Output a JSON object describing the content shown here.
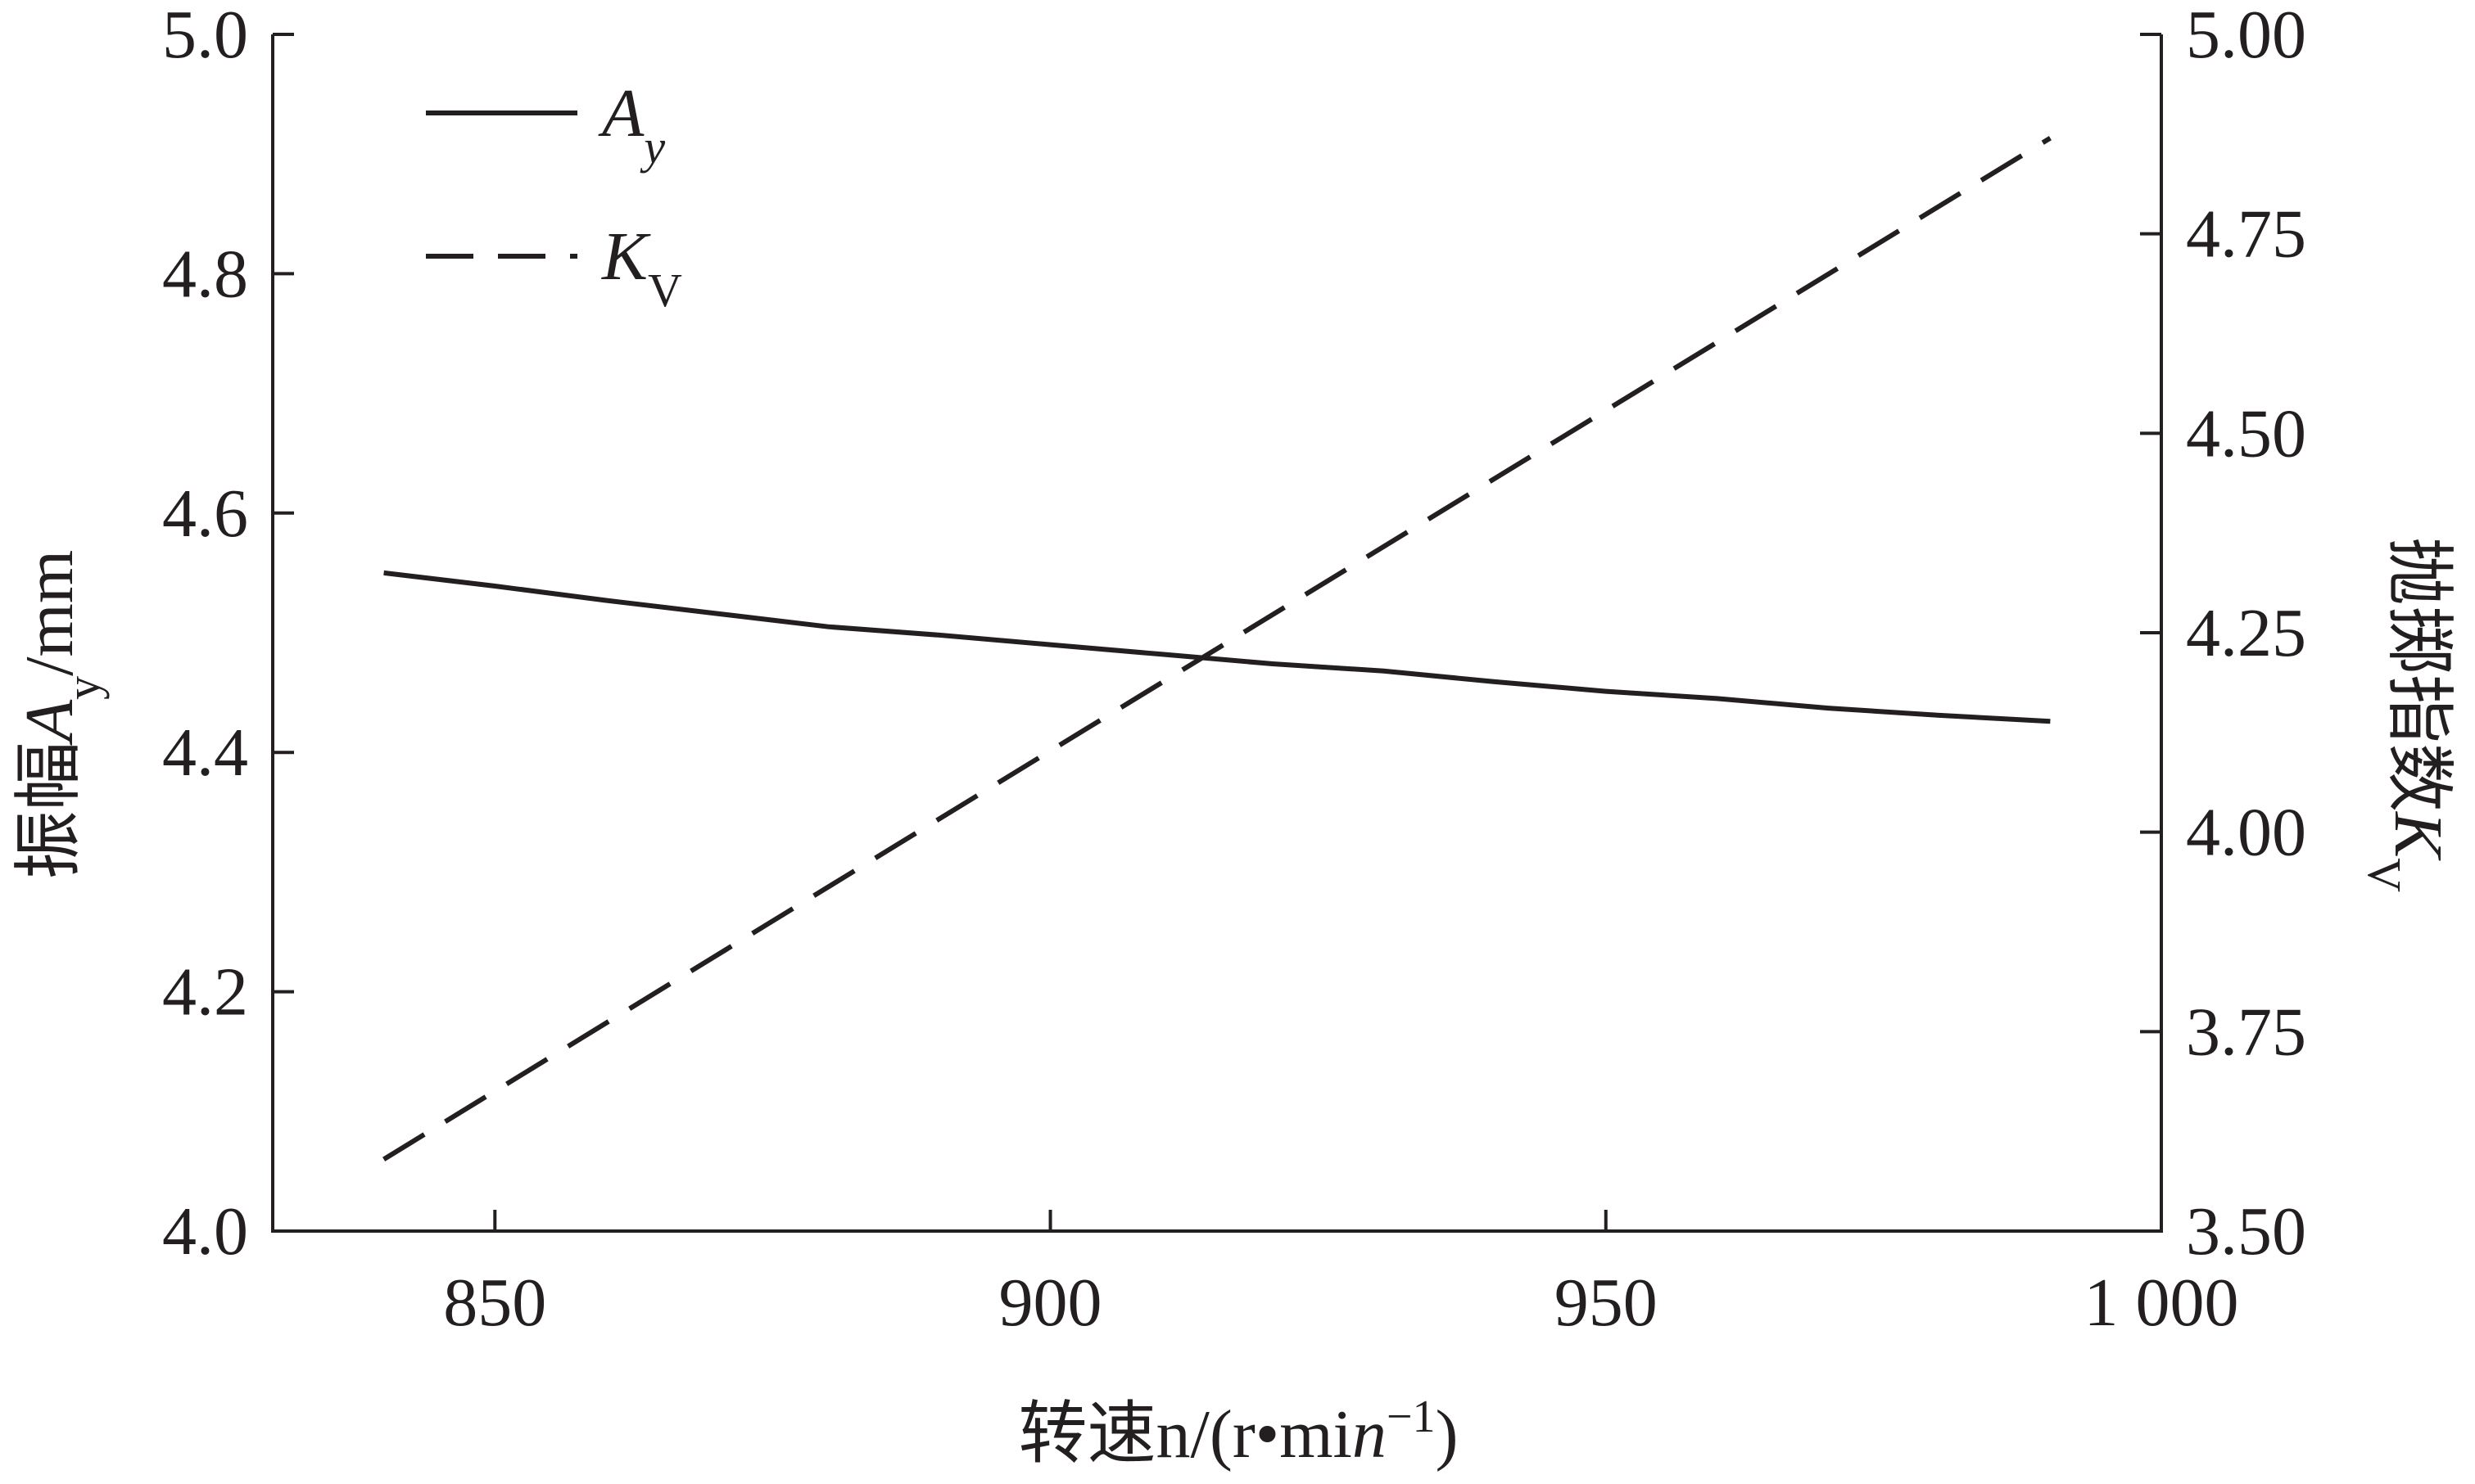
{
  "chart_data": {
    "type": "line",
    "xlabel": "转速n/(r•min⁻¹)",
    "ylabel_left": "振幅A_y/mm",
    "ylabel_right": "抛掷指数K_V",
    "xlim": [
      830,
      1000
    ],
    "ylim_left": [
      4.0,
      5.0
    ],
    "ylim_right": [
      3.5,
      5.0
    ],
    "x_ticks": [
      850,
      900,
      950,
      1000
    ],
    "x_tick_labels": [
      "850",
      "900",
      "950",
      "1 000"
    ],
    "y_left_ticks": [
      4.0,
      4.2,
      4.4,
      4.6,
      4.8,
      5.0
    ],
    "y_left_tick_labels": [
      "4.0",
      "4.2",
      "4.4",
      "4.6",
      "4.8",
      "5.0"
    ],
    "y_right_ticks": [
      3.5,
      3.75,
      4.0,
      4.25,
      4.5,
      4.75,
      5.0
    ],
    "y_right_tick_labels": [
      "3.50",
      "3.75",
      "4.00",
      "4.25",
      "4.50",
      "4.75",
      "5.00"
    ],
    "grid": false,
    "legend_position": "top-left",
    "series": [
      {
        "name": "A_y",
        "axis": "left",
        "style": "solid",
        "color": "#231f20",
        "x": [
          840,
          850,
          860,
          870,
          880,
          890,
          900,
          910,
          920,
          930,
          940,
          950,
          960,
          970,
          980,
          990
        ],
        "values": [
          4.55,
          4.539,
          4.527,
          4.516,
          4.505,
          4.498,
          4.49,
          4.482,
          4.474,
          4.468,
          4.459,
          4.451,
          4.445,
          4.437,
          4.431,
          4.426
        ]
      },
      {
        "name": "K_V",
        "axis": "right",
        "style": "dashed",
        "color": "#231f20",
        "x": [
          840,
          990
        ],
        "values": [
          3.59,
          4.87
        ]
      }
    ]
  }
}
